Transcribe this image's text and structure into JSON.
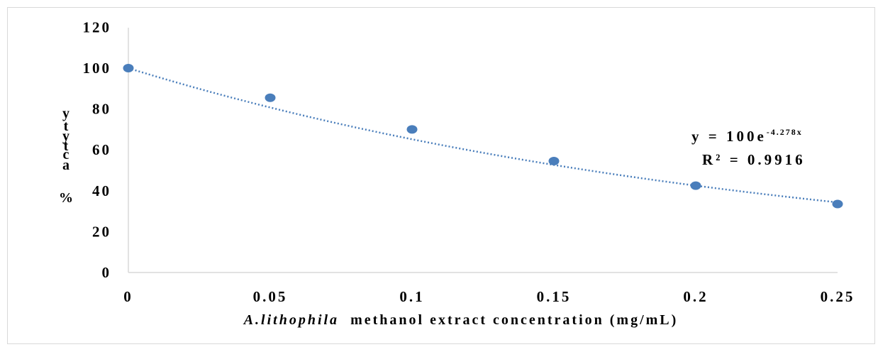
{
  "chart_data": {
    "type": "scatter",
    "title": "",
    "xlabel_italic": "A.lithophila",
    "xlabel_rest": "methanol extract concentration (mg/mL)",
    "ylabel_chars": [
      "y",
      "t",
      "y",
      "t",
      "c",
      "a",
      "%"
    ],
    "x_ticks": [
      "0",
      "0.05",
      "0.1",
      "0.15",
      "0.2",
      "0.25"
    ],
    "y_ticks": [
      "0",
      "20",
      "40",
      "60",
      "80",
      "100",
      "120"
    ],
    "xlim": [
      0,
      0.25
    ],
    "ylim": [
      0,
      120
    ],
    "grid": false,
    "series": [
      {
        "x": [
          0,
          0.05,
          0.1,
          0.15,
          0.2,
          0.25
        ],
        "y": [
          100,
          85.5,
          70,
          54.5,
          42.5,
          33.5
        ],
        "color": "#4a7ebb"
      }
    ],
    "trendline": {
      "type": "exponential",
      "a": 100,
      "b": -4.278,
      "color": "#4a7ebb",
      "equation_main": "y = 100e",
      "equation_exp": "-4.278x",
      "r_squared": "R² = 0.9916"
    },
    "colors": {
      "border": "#d9d9d9",
      "axis": "#d9d9d9",
      "point": "#4a7ebb"
    }
  }
}
